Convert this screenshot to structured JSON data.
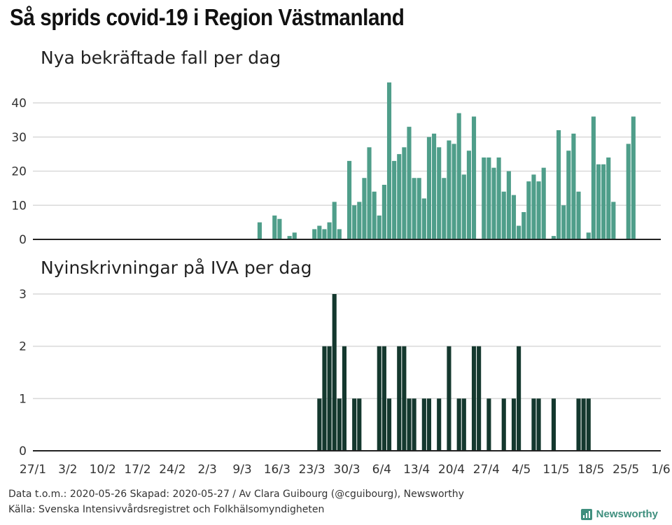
{
  "title": "Så sprids covid-19 i Region Västmanland",
  "footer": {
    "line1": "Data t.o.m.: 2020-05-26 Skapad: 2020-05-27 / Av Clara Guibourg (@cguibourg), Newsworthy",
    "line2": "Källa: Svenska Intensivvårdsregistret och Folkhälsomyndigheten",
    "logo": "Newsworthy"
  },
  "colors": {
    "cases": "#4f9e8a",
    "icu": "#14382e",
    "grid": "#d9d9d9",
    "axis": "#222222"
  },
  "chart_data": [
    {
      "type": "bar",
      "title": "Nya bekräftade fall per dag",
      "x_labels": [
        "27/1",
        "3/2",
        "10/2",
        "17/2",
        "24/2",
        "2/3",
        "9/3",
        "16/3",
        "23/3",
        "30/3",
        "6/4",
        "13/4",
        "20/4",
        "27/4",
        "4/5",
        "11/5",
        "18/5",
        "25/5",
        "1/6"
      ],
      "x_range": [
        "2020-01-27",
        "2020-06-01"
      ],
      "yticks": [
        0,
        10,
        20,
        30,
        40
      ],
      "ylim": [
        0,
        46
      ],
      "bars": [
        {
          "date": "2020-03-12",
          "value": 5
        },
        {
          "date": "2020-03-15",
          "value": 7
        },
        {
          "date": "2020-03-16",
          "value": 6
        },
        {
          "date": "2020-03-18",
          "value": 1
        },
        {
          "date": "2020-03-19",
          "value": 2
        },
        {
          "date": "2020-03-23",
          "value": 3
        },
        {
          "date": "2020-03-24",
          "value": 4
        },
        {
          "date": "2020-03-25",
          "value": 3
        },
        {
          "date": "2020-03-26",
          "value": 5
        },
        {
          "date": "2020-03-27",
          "value": 11
        },
        {
          "date": "2020-03-28",
          "value": 3
        },
        {
          "date": "2020-03-30",
          "value": 23
        },
        {
          "date": "2020-03-31",
          "value": 10
        },
        {
          "date": "2020-04-01",
          "value": 11
        },
        {
          "date": "2020-04-02",
          "value": 18
        },
        {
          "date": "2020-04-03",
          "value": 27
        },
        {
          "date": "2020-04-04",
          "value": 14
        },
        {
          "date": "2020-04-05",
          "value": 7
        },
        {
          "date": "2020-04-06",
          "value": 16
        },
        {
          "date": "2020-04-07",
          "value": 46
        },
        {
          "date": "2020-04-08",
          "value": 23
        },
        {
          "date": "2020-04-09",
          "value": 25
        },
        {
          "date": "2020-04-10",
          "value": 27
        },
        {
          "date": "2020-04-11",
          "value": 33
        },
        {
          "date": "2020-04-12",
          "value": 18
        },
        {
          "date": "2020-04-13",
          "value": 18
        },
        {
          "date": "2020-04-14",
          "value": 12
        },
        {
          "date": "2020-04-15",
          "value": 30
        },
        {
          "date": "2020-04-16",
          "value": 31
        },
        {
          "date": "2020-04-17",
          "value": 27
        },
        {
          "date": "2020-04-18",
          "value": 18
        },
        {
          "date": "2020-04-19",
          "value": 29
        },
        {
          "date": "2020-04-20",
          "value": 28
        },
        {
          "date": "2020-04-21",
          "value": 37
        },
        {
          "date": "2020-04-22",
          "value": 19
        },
        {
          "date": "2020-04-23",
          "value": 26
        },
        {
          "date": "2020-04-24",
          "value": 36
        },
        {
          "date": "2020-04-26",
          "value": 24
        },
        {
          "date": "2020-04-27",
          "value": 24
        },
        {
          "date": "2020-04-28",
          "value": 21
        },
        {
          "date": "2020-04-29",
          "value": 24
        },
        {
          "date": "2020-04-30",
          "value": 14
        },
        {
          "date": "2020-05-01",
          "value": 20
        },
        {
          "date": "2020-05-02",
          "value": 13
        },
        {
          "date": "2020-05-03",
          "value": 4
        },
        {
          "date": "2020-05-04",
          "value": 8
        },
        {
          "date": "2020-05-05",
          "value": 17
        },
        {
          "date": "2020-05-06",
          "value": 19
        },
        {
          "date": "2020-05-07",
          "value": 17
        },
        {
          "date": "2020-05-08",
          "value": 21
        },
        {
          "date": "2020-05-10",
          "value": 1
        },
        {
          "date": "2020-05-11",
          "value": 32
        },
        {
          "date": "2020-05-12",
          "value": 10
        },
        {
          "date": "2020-05-13",
          "value": 26
        },
        {
          "date": "2020-05-14",
          "value": 31
        },
        {
          "date": "2020-05-15",
          "value": 14
        },
        {
          "date": "2020-05-17",
          "value": 2
        },
        {
          "date": "2020-05-18",
          "value": 36
        },
        {
          "date": "2020-05-19",
          "value": 22
        },
        {
          "date": "2020-05-20",
          "value": 22
        },
        {
          "date": "2020-05-21",
          "value": 24
        },
        {
          "date": "2020-05-22",
          "value": 11
        },
        {
          "date": "2020-05-25",
          "value": 28
        },
        {
          "date": "2020-05-26",
          "value": 36
        }
      ]
    },
    {
      "type": "bar",
      "title": "Nyinskrivningar på IVA per dag",
      "x_labels": [
        "27/1",
        "3/2",
        "10/2",
        "17/2",
        "24/2",
        "2/3",
        "9/3",
        "16/3",
        "23/3",
        "30/3",
        "6/4",
        "13/4",
        "20/4",
        "27/4",
        "4/5",
        "11/5",
        "18/5",
        "25/5",
        "1/6"
      ],
      "x_range": [
        "2020-01-27",
        "2020-06-01"
      ],
      "yticks": [
        0,
        1,
        2,
        3
      ],
      "ylim": [
        0,
        3
      ],
      "bars": [
        {
          "date": "2020-03-24",
          "value": 1
        },
        {
          "date": "2020-03-25",
          "value": 2
        },
        {
          "date": "2020-03-26",
          "value": 2
        },
        {
          "date": "2020-03-27",
          "value": 3
        },
        {
          "date": "2020-03-28",
          "value": 1
        },
        {
          "date": "2020-03-29",
          "value": 2
        },
        {
          "date": "2020-03-31",
          "value": 1
        },
        {
          "date": "2020-04-01",
          "value": 1
        },
        {
          "date": "2020-04-05",
          "value": 2
        },
        {
          "date": "2020-04-06",
          "value": 2
        },
        {
          "date": "2020-04-07",
          "value": 1
        },
        {
          "date": "2020-04-09",
          "value": 2
        },
        {
          "date": "2020-04-10",
          "value": 2
        },
        {
          "date": "2020-04-11",
          "value": 1
        },
        {
          "date": "2020-04-12",
          "value": 1
        },
        {
          "date": "2020-04-14",
          "value": 1
        },
        {
          "date": "2020-04-15",
          "value": 1
        },
        {
          "date": "2020-04-17",
          "value": 1
        },
        {
          "date": "2020-04-19",
          "value": 2
        },
        {
          "date": "2020-04-21",
          "value": 1
        },
        {
          "date": "2020-04-22",
          "value": 1
        },
        {
          "date": "2020-04-24",
          "value": 2
        },
        {
          "date": "2020-04-25",
          "value": 2
        },
        {
          "date": "2020-04-27",
          "value": 1
        },
        {
          "date": "2020-04-30",
          "value": 1
        },
        {
          "date": "2020-05-02",
          "value": 1
        },
        {
          "date": "2020-05-03",
          "value": 2
        },
        {
          "date": "2020-05-06",
          "value": 1
        },
        {
          "date": "2020-05-07",
          "value": 1
        },
        {
          "date": "2020-05-10",
          "value": 1
        },
        {
          "date": "2020-05-15",
          "value": 1
        },
        {
          "date": "2020-05-16",
          "value": 1
        },
        {
          "date": "2020-05-17",
          "value": 1
        }
      ]
    }
  ]
}
